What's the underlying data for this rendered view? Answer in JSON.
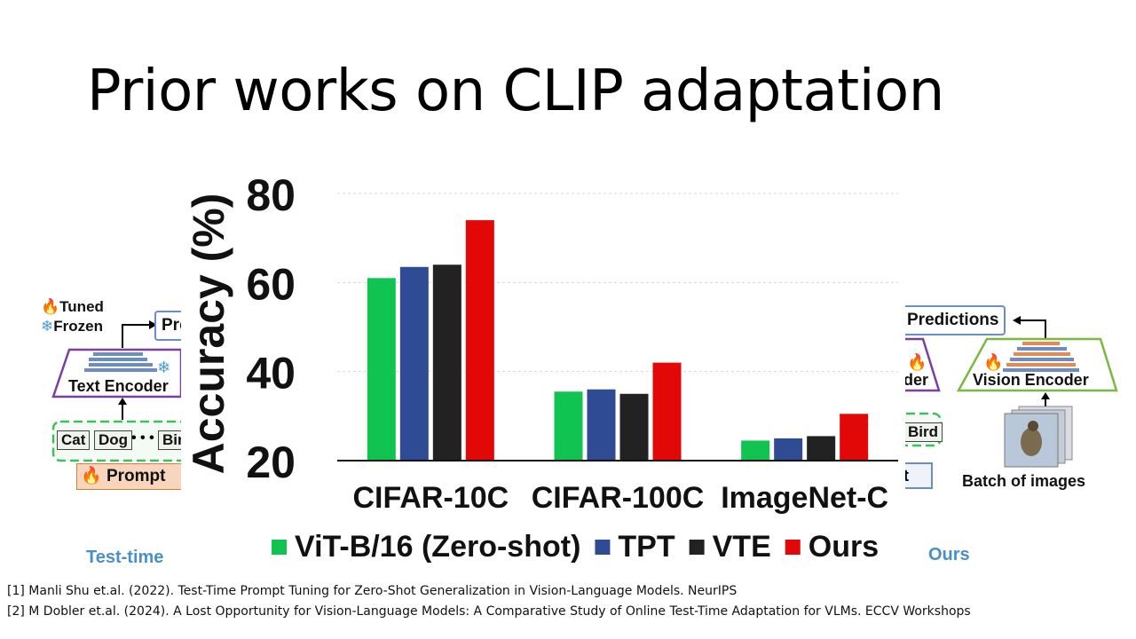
{
  "slide": {
    "title": "Prior works on CLIP adaptation",
    "left_caption": "Test-time",
    "right_caption": "Ours",
    "references": [
      "[1] Manli Shu et.al. (2022). Test-Time Prompt Tuning for Zero-Shot Generalization in Vision-Language Models. NeurIPS",
      "[2] M Dobler et.al. (2024). A Lost Opportunity for Vision-Language Models: A Comparative Study of Online Test-Time Adaptation for VLMs. ECCV Workshops"
    ]
  },
  "left_diagram": {
    "legend_tuned": "Tuned",
    "legend_frozen": "Frozen",
    "predictions_fragment": "Pre",
    "encoder_label": "Text Encoder",
    "words": [
      "Cat",
      "Dog",
      "• • •",
      "Bir"
    ],
    "prompt_label": "Prompt",
    "icons": [
      "fire-icon",
      "snowflake-icon"
    ]
  },
  "right_diagram": {
    "predictions_label": "Predictions",
    "text_encoder_fragment": "der",
    "encoder_label": "Vision Encoder",
    "word_fragment": "Bird",
    "prompt_fragment": "t",
    "batch_label": "Batch of images"
  },
  "chart_data": {
    "type": "bar",
    "ylabel": "Accuracy (%)",
    "ylim": [
      20,
      80
    ],
    "yticks": [
      20,
      40,
      60,
      80
    ],
    "grid": true,
    "legend_placement": "bottom",
    "categories": [
      "CIFAR-10C",
      "CIFAR-100C",
      "ImageNet-C"
    ],
    "series": [
      {
        "name": "ViT-B/16 (Zero-shot)",
        "color": "#11c452",
        "values": [
          61,
          35.5,
          24.5
        ]
      },
      {
        "name": "TPT",
        "color": "#2e4b94",
        "values": [
          63.5,
          36,
          25
        ]
      },
      {
        "name": "VTE",
        "color": "#222222",
        "values": [
          64,
          35,
          25.5
        ]
      },
      {
        "name": "Ours",
        "color": "#e30808",
        "values": [
          74,
          42,
          30.5
        ]
      }
    ]
  }
}
